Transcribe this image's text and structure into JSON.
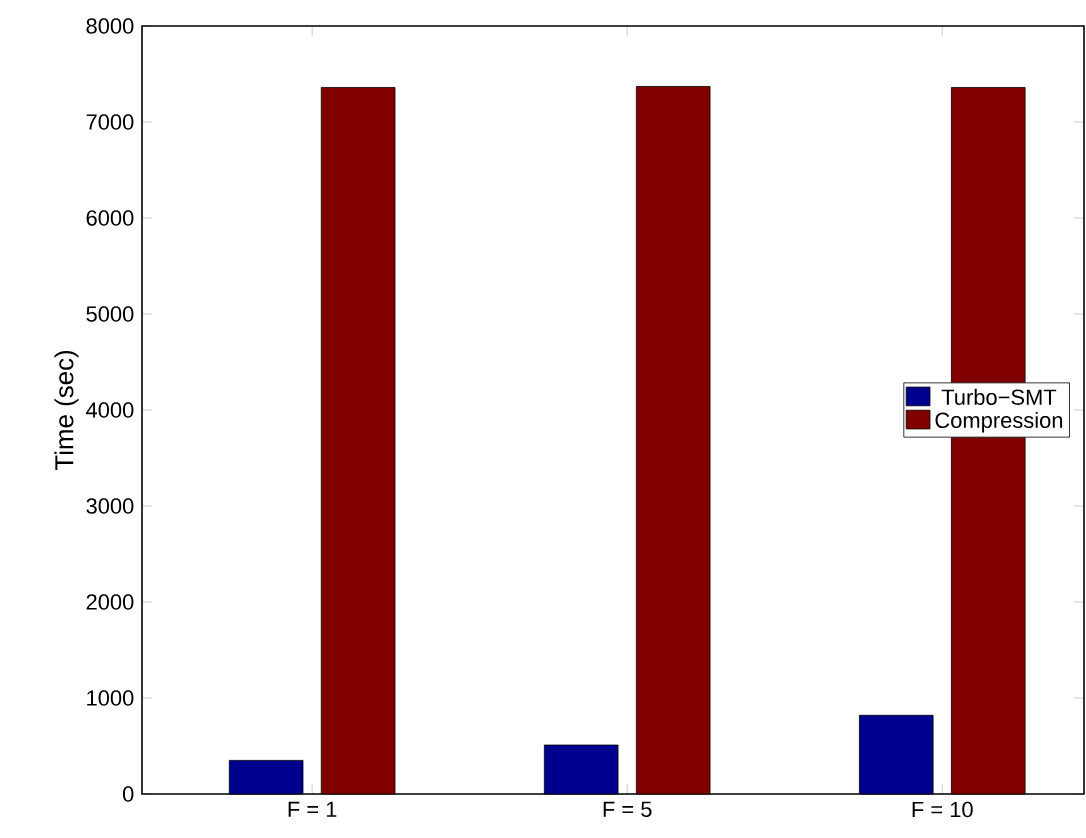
{
  "chart_data": {
    "type": "bar",
    "ylabel": "Time (sec)",
    "categories": [
      "F = 1",
      "F = 5",
      "F = 10"
    ],
    "series": [
      {
        "name": "Turbo−SMT",
        "color": "#00008f",
        "values": [
          350,
          510,
          820
        ]
      },
      {
        "name": "Compression",
        "color": "#800000",
        "values": [
          7360,
          7370,
          7360
        ]
      }
    ],
    "ylim": [
      0,
      8000
    ],
    "yticks": [
      0,
      1000,
      2000,
      3000,
      4000,
      5000,
      6000,
      7000,
      8000
    ],
    "legend": "right"
  }
}
